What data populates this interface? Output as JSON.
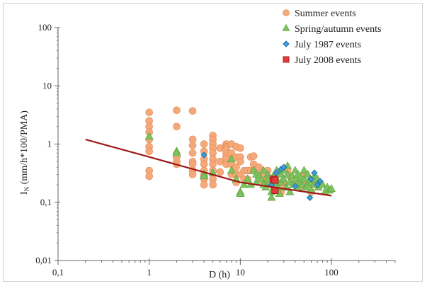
{
  "chart_data": {
    "type": "scatter",
    "xscale": "log",
    "yscale": "log",
    "xlim": [
      0.1,
      500
    ],
    "ylim": [
      0.01,
      100
    ],
    "xticks": [
      0.1,
      1,
      10,
      100
    ],
    "xtick_labels": [
      "0,1",
      "1",
      "10",
      "100"
    ],
    "yticks": [
      0.01,
      0.1,
      1,
      10,
      100
    ],
    "ytick_labels": [
      "0,01",
      "0,1",
      "1",
      "10",
      "100"
    ],
    "xlabel": "D (h)",
    "ylabel_main": "I",
    "ylabel_sub": "N",
    "ylabel_rest": " (mm/h*100/PMA)",
    "grid": false,
    "legend_position": "top-right",
    "series": [
      {
        "name": "Summer events",
        "marker": "circle",
        "color": "#f5a97a",
        "edge": "#e08a55",
        "points": [
          [
            1,
            3.5
          ],
          [
            1,
            2.5
          ],
          [
            1,
            2.0
          ],
          [
            1,
            1.6
          ],
          [
            1,
            1.2
          ],
          [
            1,
            0.9
          ],
          [
            1,
            0.75
          ],
          [
            1,
            0.35
          ],
          [
            1,
            0.28
          ],
          [
            2,
            3.8
          ],
          [
            2,
            2.0
          ],
          [
            2,
            0.6
          ],
          [
            2,
            0.5
          ],
          [
            2,
            0.45
          ],
          [
            3,
            3.7
          ],
          [
            3,
            1.2
          ],
          [
            3,
            0.95
          ],
          [
            3,
            0.7
          ],
          [
            3,
            0.5
          ],
          [
            3,
            0.45
          ],
          [
            3,
            0.35
          ],
          [
            3,
            0.3
          ],
          [
            4,
            1.0
          ],
          [
            4,
            0.75
          ],
          [
            4,
            0.55
          ],
          [
            4,
            0.45
          ],
          [
            4,
            0.35
          ],
          [
            4,
            0.3
          ],
          [
            4,
            0.25
          ],
          [
            4,
            0.2
          ],
          [
            5,
            1.4
          ],
          [
            5,
            1.2
          ],
          [
            5,
            1.0
          ],
          [
            5,
            0.85
          ],
          [
            5,
            0.7
          ],
          [
            5,
            0.55
          ],
          [
            5,
            0.45
          ],
          [
            5,
            0.35
          ],
          [
            5,
            0.25
          ],
          [
            5,
            0.2
          ],
          [
            6,
            0.85
          ],
          [
            6,
            0.5
          ],
          [
            6,
            0.33
          ],
          [
            7,
            1.0
          ],
          [
            7,
            0.9
          ],
          [
            7,
            0.85
          ],
          [
            7,
            0.8
          ],
          [
            7,
            0.7
          ],
          [
            7,
            0.6
          ],
          [
            7,
            0.55
          ],
          [
            7,
            0.45
          ],
          [
            8,
            1.0
          ],
          [
            8,
            0.7
          ],
          [
            8,
            0.45
          ],
          [
            8,
            0.3
          ],
          [
            9,
            0.9
          ],
          [
            9,
            0.6
          ],
          [
            9,
            0.4
          ],
          [
            9,
            0.3
          ],
          [
            9,
            0.22
          ],
          [
            10,
            0.85
          ],
          [
            10,
            0.6
          ],
          [
            10,
            0.5
          ],
          [
            10,
            0.3
          ],
          [
            11,
            0.35
          ],
          [
            11,
            0.25
          ],
          [
            12,
            0.35
          ],
          [
            12,
            0.25
          ],
          [
            13,
            0.6
          ],
          [
            13,
            0.35
          ],
          [
            14,
            0.62
          ],
          [
            14,
            0.45
          ],
          [
            14,
            0.35
          ],
          [
            16,
            0.4
          ],
          [
            16,
            0.3
          ],
          [
            18,
            0.3
          ],
          [
            18,
            0.22
          ],
          [
            20,
            0.35
          ],
          [
            20,
            0.25
          ],
          [
            22,
            0.22
          ],
          [
            22,
            0.2
          ],
          [
            25,
            0.18
          ],
          [
            28,
            0.15
          ],
          [
            30,
            0.2
          ],
          [
            33,
            0.35
          ],
          [
            35,
            0.28
          ],
          [
            40,
            0.22
          ],
          [
            45,
            0.18
          ],
          [
            50,
            0.3
          ],
          [
            55,
            0.22
          ],
          [
            60,
            0.15
          ],
          [
            70,
            0.2
          ]
        ]
      },
      {
        "name": "Spring/autumn events",
        "marker": "triangle",
        "color": "#7fc15e",
        "edge": "#5aa03c",
        "points": [
          [
            1,
            1.35
          ],
          [
            2,
            0.75
          ],
          [
            2,
            0.7
          ],
          [
            4,
            0.3
          ],
          [
            4,
            0.28
          ],
          [
            5,
            0.32
          ],
          [
            8,
            0.55
          ],
          [
            8,
            0.35
          ],
          [
            9,
            0.25
          ],
          [
            10,
            0.15
          ],
          [
            10,
            0.14
          ],
          [
            11,
            0.2
          ],
          [
            12,
            0.25
          ],
          [
            13,
            0.2
          ],
          [
            14,
            0.35
          ],
          [
            15,
            0.3
          ],
          [
            15,
            0.22
          ],
          [
            16,
            0.28
          ],
          [
            17,
            0.25
          ],
          [
            18,
            0.35
          ],
          [
            18,
            0.2
          ],
          [
            19,
            0.18
          ],
          [
            20,
            0.3
          ],
          [
            20,
            0.25
          ],
          [
            21,
            0.22
          ],
          [
            22,
            0.15
          ],
          [
            22,
            0.12
          ],
          [
            23,
            0.28
          ],
          [
            24,
            0.2
          ],
          [
            25,
            0.35
          ],
          [
            25,
            0.25
          ],
          [
            26,
            0.18
          ],
          [
            27,
            0.14
          ],
          [
            28,
            0.3
          ],
          [
            28,
            0.22
          ],
          [
            30,
            0.35
          ],
          [
            30,
            0.25
          ],
          [
            32,
            0.18
          ],
          [
            33,
            0.42
          ],
          [
            33,
            0.3
          ],
          [
            35,
            0.22
          ],
          [
            35,
            0.15
          ],
          [
            37,
            0.28
          ],
          [
            38,
            0.2
          ],
          [
            40,
            0.35
          ],
          [
            40,
            0.25
          ],
          [
            42,
            0.18
          ],
          [
            43,
            0.3
          ],
          [
            45,
            0.22
          ],
          [
            46,
            0.27
          ],
          [
            48,
            0.2
          ],
          [
            50,
            0.35
          ],
          [
            50,
            0.25
          ],
          [
            52,
            0.18
          ],
          [
            55,
            0.3
          ],
          [
            55,
            0.2
          ],
          [
            58,
            0.25
          ],
          [
            60,
            0.22
          ],
          [
            60,
            0.16
          ],
          [
            65,
            0.28
          ],
          [
            65,
            0.2
          ],
          [
            70,
            0.25
          ],
          [
            72,
            0.18
          ],
          [
            75,
            0.22
          ],
          [
            80,
            0.2
          ],
          [
            85,
            0.15
          ],
          [
            90,
            0.18
          ],
          [
            95,
            0.16
          ],
          [
            100,
            0.17
          ]
        ]
      },
      {
        "name": "July 1987 events",
        "marker": "diamond",
        "color": "#3d9fd6",
        "edge": "#1f6fa3",
        "points": [
          [
            4,
            0.65
          ],
          [
            22,
            0.2
          ],
          [
            25,
            0.32
          ],
          [
            28,
            0.37
          ],
          [
            30,
            0.4
          ],
          [
            40,
            0.19
          ],
          [
            58,
            0.12
          ],
          [
            60,
            0.25
          ],
          [
            65,
            0.32
          ],
          [
            70,
            0.2
          ],
          [
            75,
            0.23
          ]
        ]
      },
      {
        "name": "July 2008 events",
        "marker": "square",
        "color": "#e23b3b",
        "edge": "#a81f1f",
        "points": [
          [
            23,
            0.25
          ],
          [
            24,
            0.24
          ],
          [
            24,
            0.16
          ]
        ]
      }
    ],
    "trendline": {
      "color": "#a01818",
      "points": [
        [
          0.2,
          1.2
        ],
        [
          1,
          0.6
        ],
        [
          10,
          0.22
        ],
        [
          100,
          0.13
        ]
      ]
    }
  }
}
